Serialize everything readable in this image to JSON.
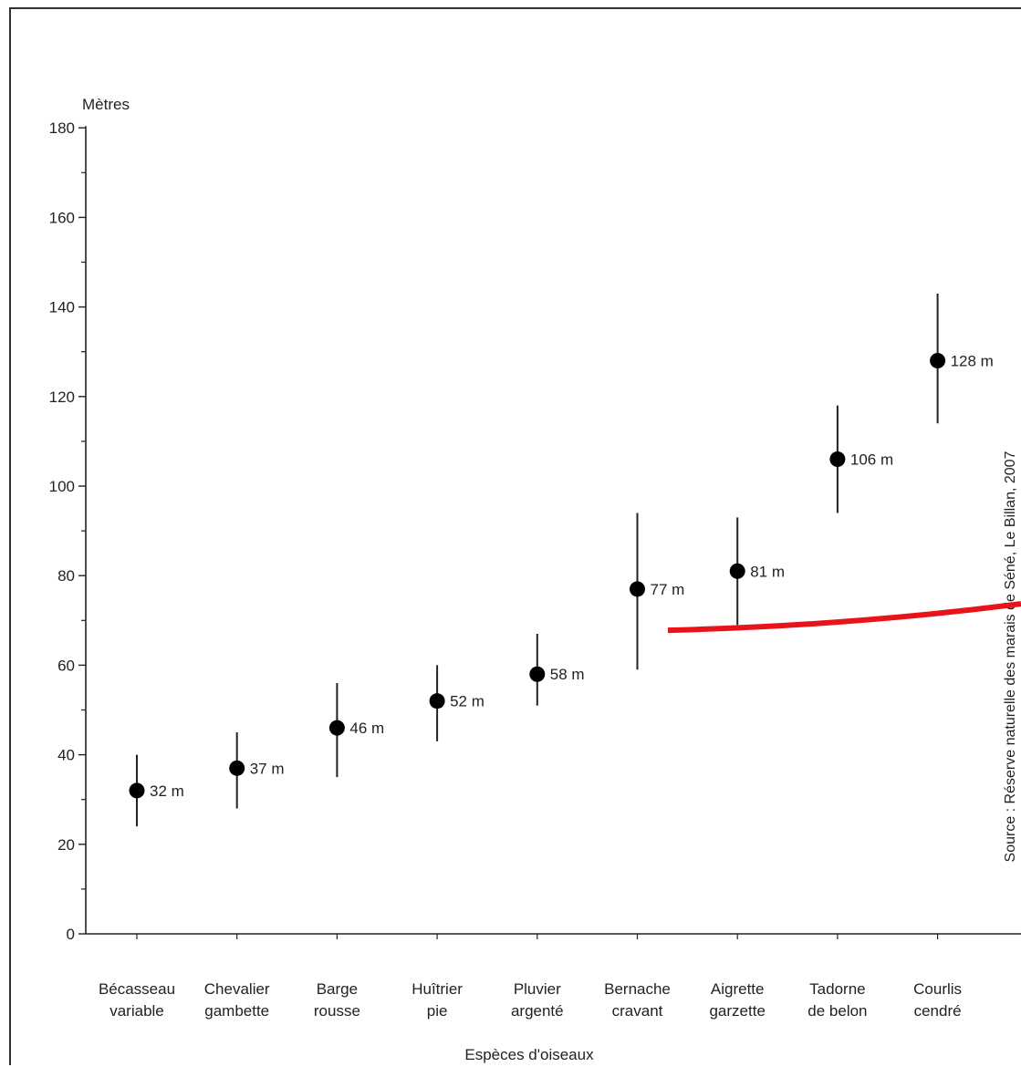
{
  "chart_data": {
    "type": "scatter",
    "ylabel": "Mètres",
    "xlabel": "Espèces d'oiseaux",
    "ylim": [
      0,
      180
    ],
    "yticks": [
      0,
      20,
      40,
      60,
      80,
      100,
      120,
      140,
      160,
      180
    ],
    "categories": [
      [
        "Bécasseau",
        "variable"
      ],
      [
        "Chevalier",
        "gambette"
      ],
      [
        "Barge",
        "rousse"
      ],
      [
        "Huîtrier",
        "pie"
      ],
      [
        "Pluvier",
        "argenté"
      ],
      [
        "Bernache",
        "cravant"
      ],
      [
        "Aigrette",
        "garzette"
      ],
      [
        "Tadorne",
        "de belon"
      ],
      [
        "Courlis",
        "cendré"
      ]
    ],
    "values": [
      32,
      37,
      46,
      52,
      58,
      77,
      81,
      106,
      128
    ],
    "error_low": [
      24,
      28,
      35,
      43,
      51,
      59,
      69,
      94,
      114
    ],
    "error_high": [
      40,
      45,
      56,
      60,
      67,
      94,
      93,
      118,
      143
    ],
    "data_labels": [
      "32 m",
      "37 m",
      "46 m",
      "52 m",
      "58 m",
      "77 m",
      "81 m",
      "106 m",
      "128 m"
    ],
    "source": "Source : Réserve naturelle des marais de Séné, Le Billan, 2007",
    "annotation_color": "#e8141b",
    "point_color": "#000000"
  }
}
